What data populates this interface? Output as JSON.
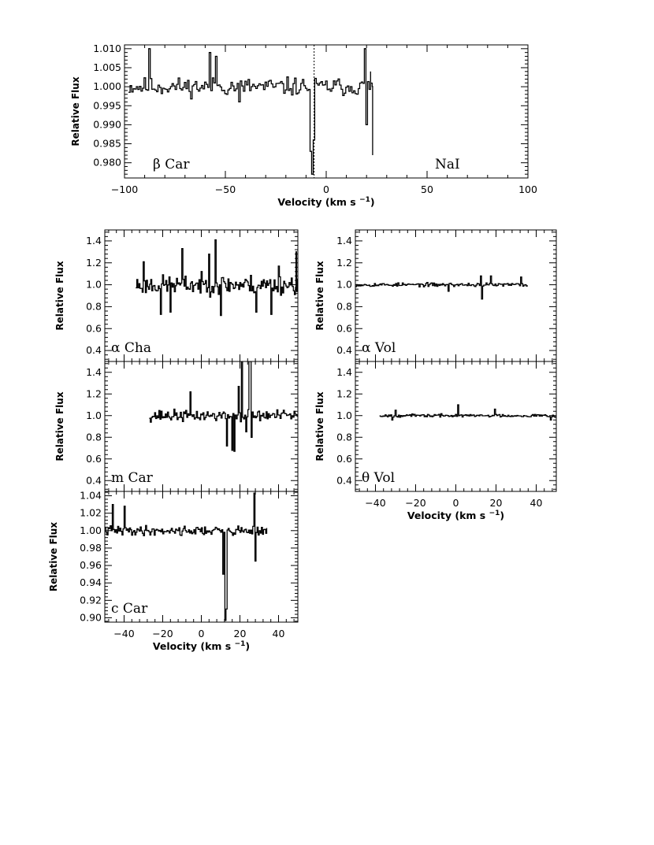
{
  "figure": {
    "xlabel": "Velocity (km s",
    "xlabel_sup": "−1",
    "xlabel_close": ")",
    "ylabel": "Relative Flux"
  },
  "chart_data": [
    {
      "id": "beta-car",
      "type": "line",
      "star": "β Car",
      "ion": "NaI",
      "xlim": [
        -100,
        100
      ],
      "ylim": [
        0.976,
        1.011
      ],
      "xticks": [
        -100,
        -50,
        0,
        50,
        100
      ],
      "yticks": [
        0.98,
        0.985,
        0.99,
        0.995,
        1.0,
        1.005,
        1.01
      ],
      "ytick_labels": [
        "0.980",
        "0.985",
        "0.990",
        "0.995",
        "1.000",
        "1.005",
        "1.010"
      ],
      "reference_line_x": -6,
      "features": {
        "x_start": -98,
        "x_end": 23,
        "noise": 0.0035,
        "seed": 11,
        "spikes": [
          [
            -88,
            1.01
          ],
          [
            -58,
            1.009
          ],
          [
            -55,
            1.008
          ],
          [
            -43,
            0.996
          ],
          [
            19,
            1.01
          ],
          [
            20,
            0.99
          ]
        ],
        "dips": [
          [
            -7.5,
            0.978
          ],
          [
            -7,
            0.977
          ],
          [
            -8,
            0.983
          ],
          [
            -6.5,
            0.986
          ]
        ],
        "tail": [
          [
            22,
            1.004
          ],
          [
            23,
            0.982
          ]
        ]
      },
      "xlabel_shown": true
    },
    {
      "id": "alpha-cha",
      "type": "line",
      "star": "α Cha",
      "xlim": [
        -50,
        50
      ],
      "ylim": [
        0.3,
        1.5
      ],
      "xticks": [
        -40,
        -20,
        0,
        20,
        40
      ],
      "yticks": [
        0.4,
        0.6,
        0.8,
        1.0,
        1.2,
        1.4
      ],
      "ytick_labels": [
        "0.4",
        "0.6",
        "0.8",
        "1.0",
        "1.2",
        "1.4"
      ],
      "features": {
        "x_start": -34,
        "x_end": 50,
        "noise": 0.13,
        "seed": 23,
        "spikes": [
          [
            -10,
            1.33
          ],
          [
            4,
            1.28
          ],
          [
            7,
            1.41
          ],
          [
            -30,
            1.21
          ],
          [
            40,
            1.17
          ]
        ],
        "dips": [
          [
            -21,
            0.73
          ],
          [
            -16,
            0.75
          ],
          [
            10,
            0.72
          ],
          [
            28,
            0.75
          ],
          [
            36,
            0.73
          ]
        ],
        "tail": [
          [
            49,
            1.3
          ]
        ]
      },
      "xlabel_shown": false
    },
    {
      "id": "m-car",
      "type": "line",
      "star": "m Car",
      "xlim": [
        -50,
        50
      ],
      "ylim": [
        0.3,
        1.5
      ],
      "xticks": [
        -40,
        -20,
        0,
        20,
        40
      ],
      "yticks": [
        0.4,
        0.6,
        0.8,
        1.0,
        1.2,
        1.4
      ],
      "ytick_labels": [
        "0.4",
        "0.6",
        "0.8",
        "1.0",
        "1.2",
        "1.4"
      ],
      "features": {
        "x_start": -27,
        "x_end": 50,
        "noise": 0.08,
        "seed": 37,
        "spikes": [
          [
            -6,
            1.22
          ],
          [
            19,
            1.27
          ],
          [
            21,
            1.51
          ],
          [
            24.5,
            1.52
          ],
          [
            25,
            1.5
          ]
        ],
        "dips": [
          [
            13,
            0.72
          ],
          [
            16,
            0.68
          ],
          [
            17,
            0.67
          ],
          [
            23,
            0.85
          ],
          [
            26,
            0.8
          ]
        ],
        "tail": []
      },
      "xlabel_shown": false
    },
    {
      "id": "c-car",
      "type": "line",
      "star": "c Car",
      "xlim": [
        -50,
        50
      ],
      "ylim": [
        0.895,
        1.045
      ],
      "xticks": [
        -40,
        -20,
        0,
        20,
        40
      ],
      "yticks": [
        0.9,
        0.92,
        0.94,
        0.96,
        0.98,
        1.0,
        1.02,
        1.04
      ],
      "ytick_labels": [
        "0.90",
        "0.92",
        "0.94",
        "0.96",
        "0.98",
        "1.00",
        "1.02",
        "1.04"
      ],
      "features": {
        "x_start": -50,
        "x_end": 34,
        "noise": 0.008,
        "seed": 41,
        "spikes": [
          [
            -46,
            1.03
          ],
          [
            -40,
            1.028
          ],
          [
            27,
            1.043
          ]
        ],
        "dips": [
          [
            11,
            0.95
          ],
          [
            12,
            0.92
          ],
          [
            12.5,
            0.897
          ],
          [
            13,
            0.91
          ],
          [
            28,
            0.965
          ]
        ],
        "tail": []
      },
      "xlabel_shown": true
    },
    {
      "id": "alpha-vol",
      "type": "line",
      "star": "α Vol",
      "xlim": [
        -50,
        50
      ],
      "ylim": [
        0.3,
        1.5
      ],
      "xticks": [
        -40,
        -20,
        0,
        20,
        40
      ],
      "yticks": [
        0.4,
        0.6,
        0.8,
        1.0,
        1.2,
        1.4
      ],
      "ytick_labels": [
        "0.4",
        "0.6",
        "0.8",
        "1.0",
        "1.2",
        "1.4"
      ],
      "features": {
        "x_start": -50,
        "x_end": 36,
        "noise": 0.025,
        "seed": 53,
        "spikes": [
          [
            12,
            1.08
          ],
          [
            17,
            1.08
          ],
          [
            32,
            1.07
          ]
        ],
        "dips": [
          [
            13,
            0.87
          ],
          [
            -4,
            0.94
          ]
        ],
        "tail": []
      },
      "xlabel_shown": false
    },
    {
      "id": "theta-vol",
      "type": "line",
      "star": "θ Vol",
      "xlim": [
        -50,
        50
      ],
      "ylim": [
        0.3,
        1.5
      ],
      "xticks": [
        -40,
        -20,
        0,
        20,
        40
      ],
      "yticks": [
        0.4,
        0.6,
        0.8,
        1.0,
        1.2,
        1.4
      ],
      "ytick_labels": [
        "0.4",
        "0.6",
        "0.8",
        "1.0",
        "1.2",
        "1.4"
      ],
      "features": {
        "x_start": -38,
        "x_end": 50,
        "noise": 0.02,
        "seed": 67,
        "spikes": [
          [
            1,
            1.1
          ],
          [
            19,
            1.06
          ],
          [
            -30,
            1.05
          ]
        ],
        "dips": [
          [
            47,
            0.96
          ],
          [
            -32,
            0.96
          ]
        ],
        "tail": []
      },
      "xlabel_shown": true
    }
  ]
}
